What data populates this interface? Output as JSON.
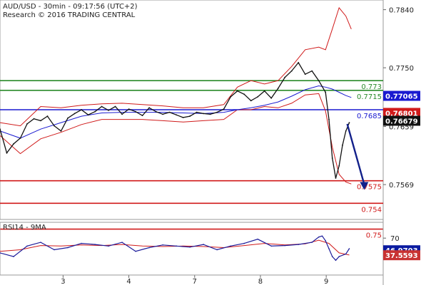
{
  "header": {
    "title_line": "AUD/USD - 30min - 09:17:56 (UTC+2)",
    "source_line": "Research © 2016 TRADING CENTRAL"
  },
  "rsi": {
    "label": "RSI14 - 9MA",
    "ticks": [
      {
        "v": 70,
        "label": "70"
      }
    ],
    "badges": [
      {
        "value": 46.9703,
        "label": "46.9703",
        "bg": "#0a1aa0",
        "fg": "#ffffff"
      },
      {
        "value": 37.5593,
        "label": "37.5593",
        "bg": "#c83232",
        "fg": "#ffffff"
      }
    ],
    "ylim": [
      0,
      100
    ]
  },
  "x_ticks": [
    {
      "x": 0.93,
      "label": "3"
    },
    {
      "x": 1.9,
      "label": "4"
    },
    {
      "x": 2.87,
      "label": "7"
    },
    {
      "x": 3.84,
      "label": "8"
    },
    {
      "x": 4.81,
      "label": "9"
    }
  ],
  "chart_data": {
    "type": "line",
    "title": "AUD/USD - 30min - 09:17:56 (UTC+2)",
    "ylim": [
      0.7515,
      0.7855
    ],
    "xlim": [
      0,
      5.65
    ],
    "y_ticks": [
      {
        "v": 0.784,
        "label": "0.7840"
      },
      {
        "v": 0.775,
        "label": "0.7750"
      },
      {
        "v": 0.7659,
        "label": "0.7659"
      },
      {
        "v": 0.7569,
        "label": "0.7569"
      }
    ],
    "levels": [
      {
        "v": 0.773,
        "label": "0.773",
        "color": "#2a8a2a"
      },
      {
        "v": 0.7715,
        "label": "0.7715",
        "color": "#2a8a2a"
      },
      {
        "v": 0.7685,
        "label": "0.7685",
        "color": "#1a1ad0"
      },
      {
        "v": 0.7575,
        "label": "0.7575",
        "color": "#d01a1a"
      },
      {
        "v": 0.754,
        "label": "0.754",
        "color": "#d01a1a"
      },
      {
        "v": 0.75,
        "label": "0.75",
        "color": "#d01a1a"
      }
    ],
    "price_badges": [
      {
        "v": 0.77065,
        "label": "0.77065",
        "bg": "#1a1ad0",
        "fg": "#ffffff"
      },
      {
        "v": 0.76801,
        "label": "0.76801",
        "bg": "#d01a1a",
        "fg": "#ffffff"
      },
      {
        "v": 0.76679,
        "label": "0.76679",
        "bg": "#111111",
        "fg": "#ffffff"
      }
    ],
    "projection": {
      "x": [
        5.12,
        5.37
      ],
      "y": [
        0.7663,
        0.7563
      ],
      "color": "#12208a"
    },
    "price": {
      "x": [
        0,
        0.1,
        0.2,
        0.3,
        0.4,
        0.5,
        0.6,
        0.7,
        0.8,
        0.9,
        1.0,
        1.1,
        1.2,
        1.3,
        1.4,
        1.5,
        1.6,
        1.7,
        1.8,
        1.9,
        2.0,
        2.1,
        2.2,
        2.3,
        2.4,
        2.5,
        2.6,
        2.7,
        2.8,
        2.9,
        3.0,
        3.1,
        3.2,
        3.3,
        3.4,
        3.5,
        3.6,
        3.7,
        3.8,
        3.9,
        4.0,
        4.1,
        4.2,
        4.3,
        4.4,
        4.5,
        4.6,
        4.7,
        4.8,
        4.85,
        4.9,
        4.95,
        5.0,
        5.05,
        5.1,
        5.15
      ],
      "y": [
        0.7655,
        0.7618,
        0.7632,
        0.7641,
        0.7663,
        0.7671,
        0.7668,
        0.7675,
        0.766,
        0.7652,
        0.7672,
        0.7679,
        0.7685,
        0.7677,
        0.7682,
        0.769,
        0.7684,
        0.769,
        0.7678,
        0.7686,
        0.7682,
        0.7676,
        0.7688,
        0.7682,
        0.7678,
        0.7681,
        0.7677,
        0.7673,
        0.7675,
        0.7681,
        0.7679,
        0.7678,
        0.7681,
        0.7686,
        0.7705,
        0.7714,
        0.7709,
        0.7699,
        0.7705,
        0.7714,
        0.7703,
        0.7718,
        0.7735,
        0.7745,
        0.7758,
        0.774,
        0.7745,
        0.773,
        0.7712,
        0.767,
        0.761,
        0.7579,
        0.7598,
        0.763,
        0.7652,
        0.7665
      ]
    },
    "upper_band": {
      "x": [
        0,
        0.3,
        0.6,
        0.9,
        1.2,
        1.5,
        1.8,
        2.1,
        2.4,
        2.7,
        3.0,
        3.3,
        3.5,
        3.7,
        3.9,
        4.1,
        4.3,
        4.5,
        4.7,
        4.8,
        4.9,
        5.0,
        5.1,
        5.18
      ],
      "y": [
        0.7665,
        0.766,
        0.769,
        0.7688,
        0.7692,
        0.7694,
        0.7695,
        0.7693,
        0.7691,
        0.7688,
        0.7688,
        0.7693,
        0.772,
        0.773,
        0.7725,
        0.773,
        0.7752,
        0.7778,
        0.7782,
        0.7778,
        0.781,
        0.7843,
        0.783,
        0.781
      ]
    },
    "lower_band": {
      "x": [
        0,
        0.3,
        0.6,
        0.9,
        1.2,
        1.5,
        1.8,
        2.1,
        2.4,
        2.7,
        3.0,
        3.3,
        3.5,
        3.7,
        3.9,
        4.1,
        4.3,
        4.5,
        4.7,
        4.8,
        4.9,
        5.0,
        5.1,
        5.18
      ],
      "y": [
        0.7645,
        0.7617,
        0.764,
        0.765,
        0.7662,
        0.767,
        0.767,
        0.767,
        0.7668,
        0.7666,
        0.7668,
        0.767,
        0.7685,
        0.7685,
        0.769,
        0.7688,
        0.7695,
        0.7708,
        0.771,
        0.7683,
        0.7627,
        0.7585,
        0.7573,
        0.757
      ]
    },
    "ma": {
      "x": [
        0,
        0.3,
        0.6,
        0.9,
        1.2,
        1.5,
        1.8,
        2.1,
        2.4,
        2.7,
        3.0,
        3.3,
        3.5,
        3.7,
        3.9,
        4.1,
        4.3,
        4.5,
        4.7,
        4.8,
        4.9,
        5.0,
        5.1,
        5.18
      ],
      "y": [
        0.7652,
        0.7641,
        0.7655,
        0.7665,
        0.7675,
        0.768,
        0.7681,
        0.7681,
        0.7681,
        0.768,
        0.7679,
        0.7681,
        0.7685,
        0.7688,
        0.7692,
        0.7697,
        0.7706,
        0.7716,
        0.7722,
        0.772,
        0.7717,
        0.7712,
        0.7707,
        0.7704
      ]
    },
    "rsi": {
      "x": [
        0,
        0.2,
        0.4,
        0.6,
        0.8,
        1.0,
        1.2,
        1.4,
        1.6,
        1.8,
        2.0,
        2.2,
        2.4,
        2.6,
        2.8,
        3.0,
        3.2,
        3.4,
        3.6,
        3.8,
        4.0,
        4.2,
        4.4,
        4.6,
        4.7,
        4.75,
        4.8,
        4.85,
        4.9,
        4.95,
        5.0,
        5.1,
        5.15
      ],
      "y": [
        42,
        35,
        55,
        62,
        48,
        52,
        60,
        58,
        55,
        62,
        45,
        52,
        57,
        55,
        53,
        58,
        48,
        55,
        60,
        68,
        55,
        56,
        58,
        62,
        72,
        74,
        65,
        50,
        35,
        28,
        35,
        40,
        50
      ]
    },
    "rsi_ma": {
      "x": [
        0,
        0.3,
        0.6,
        0.9,
        1.2,
        1.5,
        1.8,
        2.1,
        2.4,
        2.7,
        3.0,
        3.3,
        3.6,
        3.9,
        4.2,
        4.5,
        4.7,
        4.85,
        5.0,
        5.15
      ],
      "y": [
        45,
        48,
        56,
        55,
        57,
        56,
        58,
        55,
        54,
        55,
        54,
        52,
        56,
        60,
        57,
        59,
        66,
        60,
        42,
        38
      ]
    }
  }
}
